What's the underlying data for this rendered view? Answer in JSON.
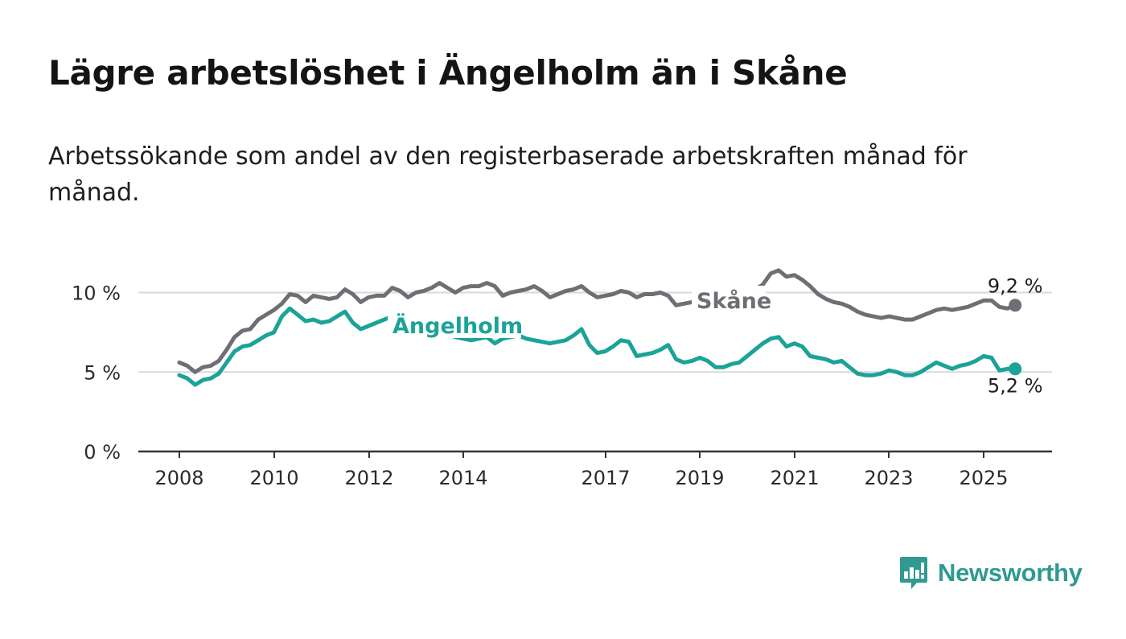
{
  "title": "Lägre arbetslöshet i Ängelholm än i Skåne",
  "subtitle": "Arbetssökande som andel av den registerbaserade arbetskraften månad för månad.",
  "brand": {
    "name": "Newsworthy",
    "icon": "newsworthy-logo-icon",
    "color": "#2f9a92"
  },
  "chart_data": {
    "type": "line",
    "title": "Lägre arbetslöshet i Ängelholm än i Skåne",
    "subtitle": "Arbetssökande som andel av den registerbaserade arbetskraften månad för månad.",
    "xlabel": "",
    "ylabel": "",
    "x_ticks": [
      "2008",
      "2010",
      "2012",
      "2014",
      "2017",
      "2019",
      "2021",
      "2023",
      "2025"
    ],
    "y_ticks": [
      "0 %",
      "5 %",
      "10 %"
    ],
    "ylim": [
      0,
      12
    ],
    "xlim": [
      "2007-01",
      "2026-06"
    ],
    "grid": true,
    "legend": "inline labels",
    "series": [
      {
        "name": "Skåne",
        "color": "#6f6e74",
        "end_label": "9,2 %",
        "points": [
          [
            "2008-01",
            5.6
          ],
          [
            "2008-03",
            5.4
          ],
          [
            "2008-05",
            5.0
          ],
          [
            "2008-07",
            5.3
          ],
          [
            "2008-09",
            5.4
          ],
          [
            "2008-11",
            5.7
          ],
          [
            "2009-01",
            6.4
          ],
          [
            "2009-03",
            7.2
          ],
          [
            "2009-05",
            7.6
          ],
          [
            "2009-07",
            7.7
          ],
          [
            "2009-09",
            8.3
          ],
          [
            "2009-11",
            8.6
          ],
          [
            "2010-01",
            8.9
          ],
          [
            "2010-03",
            9.3
          ],
          [
            "2010-05",
            9.9
          ],
          [
            "2010-07",
            9.8
          ],
          [
            "2010-09",
            9.4
          ],
          [
            "2010-11",
            9.8
          ],
          [
            "2011-01",
            9.7
          ],
          [
            "2011-03",
            9.6
          ],
          [
            "2011-05",
            9.7
          ],
          [
            "2011-07",
            10.2
          ],
          [
            "2011-09",
            9.9
          ],
          [
            "2011-11",
            9.4
          ],
          [
            "2012-01",
            9.7
          ],
          [
            "2012-03",
            9.8
          ],
          [
            "2012-05",
            9.8
          ],
          [
            "2012-07",
            10.3
          ],
          [
            "2012-09",
            10.1
          ],
          [
            "2012-11",
            9.7
          ],
          [
            "2013-01",
            10.0
          ],
          [
            "2013-03",
            10.1
          ],
          [
            "2013-05",
            10.3
          ],
          [
            "2013-07",
            10.6
          ],
          [
            "2013-09",
            10.3
          ],
          [
            "2013-11",
            10.0
          ],
          [
            "2014-01",
            10.3
          ],
          [
            "2014-03",
            10.4
          ],
          [
            "2014-05",
            10.4
          ],
          [
            "2014-07",
            10.6
          ],
          [
            "2014-09",
            10.4
          ],
          [
            "2014-11",
            9.8
          ],
          [
            "2015-01",
            10.0
          ],
          [
            "2015-03",
            10.1
          ],
          [
            "2015-05",
            10.2
          ],
          [
            "2015-07",
            10.4
          ],
          [
            "2015-09",
            10.1
          ],
          [
            "2015-11",
            9.7
          ],
          [
            "2016-01",
            9.9
          ],
          [
            "2016-03",
            10.1
          ],
          [
            "2016-05",
            10.2
          ],
          [
            "2016-07",
            10.4
          ],
          [
            "2016-09",
            10.0
          ],
          [
            "2016-11",
            9.7
          ],
          [
            "2017-01",
            9.8
          ],
          [
            "2017-03",
            9.9
          ],
          [
            "2017-05",
            10.1
          ],
          [
            "2017-07",
            10.0
          ],
          [
            "2017-09",
            9.7
          ],
          [
            "2017-11",
            9.9
          ],
          [
            "2018-01",
            9.9
          ],
          [
            "2018-03",
            10.0
          ],
          [
            "2018-05",
            9.8
          ],
          [
            "2018-07",
            9.2
          ],
          [
            "2018-09",
            9.3
          ],
          [
            "2018-11",
            9.4
          ],
          [
            "2019-01",
            9.5
          ],
          [
            "2019-03",
            9.6
          ],
          [
            "2019-05",
            9.7
          ],
          [
            "2019-07",
            9.8
          ],
          [
            "2019-09",
            9.9
          ],
          [
            "2019-11",
            9.9
          ],
          [
            "2020-01",
            10.1
          ],
          [
            "2020-03",
            10.2
          ],
          [
            "2020-05",
            10.5
          ],
          [
            "2020-07",
            11.2
          ],
          [
            "2020-09",
            11.4
          ],
          [
            "2020-11",
            11.0
          ],
          [
            "2021-01",
            11.1
          ],
          [
            "2021-03",
            10.8
          ],
          [
            "2021-05",
            10.4
          ],
          [
            "2021-07",
            9.9
          ],
          [
            "2021-09",
            9.6
          ],
          [
            "2021-11",
            9.4
          ],
          [
            "2022-01",
            9.3
          ],
          [
            "2022-03",
            9.1
          ],
          [
            "2022-05",
            8.8
          ],
          [
            "2022-07",
            8.6
          ],
          [
            "2022-09",
            8.5
          ],
          [
            "2022-11",
            8.4
          ],
          [
            "2023-01",
            8.5
          ],
          [
            "2023-03",
            8.4
          ],
          [
            "2023-05",
            8.3
          ],
          [
            "2023-07",
            8.3
          ],
          [
            "2023-09",
            8.5
          ],
          [
            "2023-11",
            8.7
          ],
          [
            "2024-01",
            8.9
          ],
          [
            "2024-03",
            9.0
          ],
          [
            "2024-05",
            8.9
          ],
          [
            "2024-07",
            9.0
          ],
          [
            "2024-09",
            9.1
          ],
          [
            "2024-11",
            9.3
          ],
          [
            "2025-01",
            9.5
          ],
          [
            "2025-03",
            9.5
          ],
          [
            "2025-05",
            9.1
          ],
          [
            "2025-07",
            9.0
          ],
          [
            "2025-09",
            9.2
          ]
        ]
      },
      {
        "name": "Ängelholm",
        "color": "#1ba398",
        "end_label": "5,2 %",
        "points": [
          [
            "2008-01",
            4.8
          ],
          [
            "2008-03",
            4.6
          ],
          [
            "2008-05",
            4.2
          ],
          [
            "2008-07",
            4.5
          ],
          [
            "2008-09",
            4.6
          ],
          [
            "2008-11",
            4.9
          ],
          [
            "2009-01",
            5.6
          ],
          [
            "2009-03",
            6.3
          ],
          [
            "2009-05",
            6.6
          ],
          [
            "2009-07",
            6.7
          ],
          [
            "2009-09",
            7.0
          ],
          [
            "2009-11",
            7.3
          ],
          [
            "2010-01",
            7.5
          ],
          [
            "2010-03",
            8.5
          ],
          [
            "2010-05",
            9.0
          ],
          [
            "2010-07",
            8.6
          ],
          [
            "2010-09",
            8.2
          ],
          [
            "2010-11",
            8.3
          ],
          [
            "2011-01",
            8.1
          ],
          [
            "2011-03",
            8.2
          ],
          [
            "2011-05",
            8.5
          ],
          [
            "2011-07",
            8.8
          ],
          [
            "2011-09",
            8.1
          ],
          [
            "2011-11",
            7.7
          ],
          [
            "2012-01",
            7.9
          ],
          [
            "2012-03",
            8.1
          ],
          [
            "2012-05",
            8.3
          ],
          [
            "2012-07",
            8.5
          ],
          [
            "2012-09",
            8.3
          ],
          [
            "2012-11",
            7.8
          ],
          [
            "2013-01",
            7.6
          ],
          [
            "2013-03",
            7.7
          ],
          [
            "2013-05",
            7.8
          ],
          [
            "2013-07",
            7.6
          ],
          [
            "2013-09",
            7.4
          ],
          [
            "2013-11",
            7.2
          ],
          [
            "2014-01",
            7.1
          ],
          [
            "2014-03",
            7.0
          ],
          [
            "2014-05",
            7.1
          ],
          [
            "2014-07",
            7.2
          ],
          [
            "2014-09",
            6.8
          ],
          [
            "2014-11",
            7.1
          ],
          [
            "2015-01",
            7.2
          ],
          [
            "2015-03",
            7.3
          ],
          [
            "2015-05",
            7.1
          ],
          [
            "2015-07",
            7.0
          ],
          [
            "2015-09",
            6.9
          ],
          [
            "2015-11",
            6.8
          ],
          [
            "2016-01",
            6.9
          ],
          [
            "2016-03",
            7.0
          ],
          [
            "2016-05",
            7.3
          ],
          [
            "2016-07",
            7.7
          ],
          [
            "2016-09",
            6.7
          ],
          [
            "2016-11",
            6.2
          ],
          [
            "2017-01",
            6.3
          ],
          [
            "2017-03",
            6.6
          ],
          [
            "2017-05",
            7.0
          ],
          [
            "2017-07",
            6.9
          ],
          [
            "2017-09",
            6.0
          ],
          [
            "2017-11",
            6.1
          ],
          [
            "2018-01",
            6.2
          ],
          [
            "2018-03",
            6.4
          ],
          [
            "2018-05",
            6.7
          ],
          [
            "2018-07",
            5.8
          ],
          [
            "2018-09",
            5.6
          ],
          [
            "2018-11",
            5.7
          ],
          [
            "2019-01",
            5.9
          ],
          [
            "2019-03",
            5.7
          ],
          [
            "2019-05",
            5.3
          ],
          [
            "2019-07",
            5.3
          ],
          [
            "2019-09",
            5.5
          ],
          [
            "2019-11",
            5.6
          ],
          [
            "2020-01",
            6.0
          ],
          [
            "2020-03",
            6.4
          ],
          [
            "2020-05",
            6.8
          ],
          [
            "2020-07",
            7.1
          ],
          [
            "2020-09",
            7.2
          ],
          [
            "2020-11",
            6.6
          ],
          [
            "2021-01",
            6.8
          ],
          [
            "2021-03",
            6.6
          ],
          [
            "2021-05",
            6.0
          ],
          [
            "2021-07",
            5.9
          ],
          [
            "2021-09",
            5.8
          ],
          [
            "2021-11",
            5.6
          ],
          [
            "2022-01",
            5.7
          ],
          [
            "2022-03",
            5.3
          ],
          [
            "2022-05",
            4.9
          ],
          [
            "2022-07",
            4.8
          ],
          [
            "2022-09",
            4.8
          ],
          [
            "2022-11",
            4.9
          ],
          [
            "2023-01",
            5.1
          ],
          [
            "2023-03",
            5.0
          ],
          [
            "2023-05",
            4.8
          ],
          [
            "2023-07",
            4.8
          ],
          [
            "2023-09",
            5.0
          ],
          [
            "2023-11",
            5.3
          ],
          [
            "2024-01",
            5.6
          ],
          [
            "2024-03",
            5.4
          ],
          [
            "2024-05",
            5.2
          ],
          [
            "2024-07",
            5.4
          ],
          [
            "2024-09",
            5.5
          ],
          [
            "2024-11",
            5.7
          ],
          [
            "2025-01",
            6.0
          ],
          [
            "2025-03",
            5.9
          ],
          [
            "2025-05",
            5.1
          ],
          [
            "2025-07",
            5.2
          ],
          [
            "2025-09",
            5.2
          ]
        ]
      }
    ]
  }
}
